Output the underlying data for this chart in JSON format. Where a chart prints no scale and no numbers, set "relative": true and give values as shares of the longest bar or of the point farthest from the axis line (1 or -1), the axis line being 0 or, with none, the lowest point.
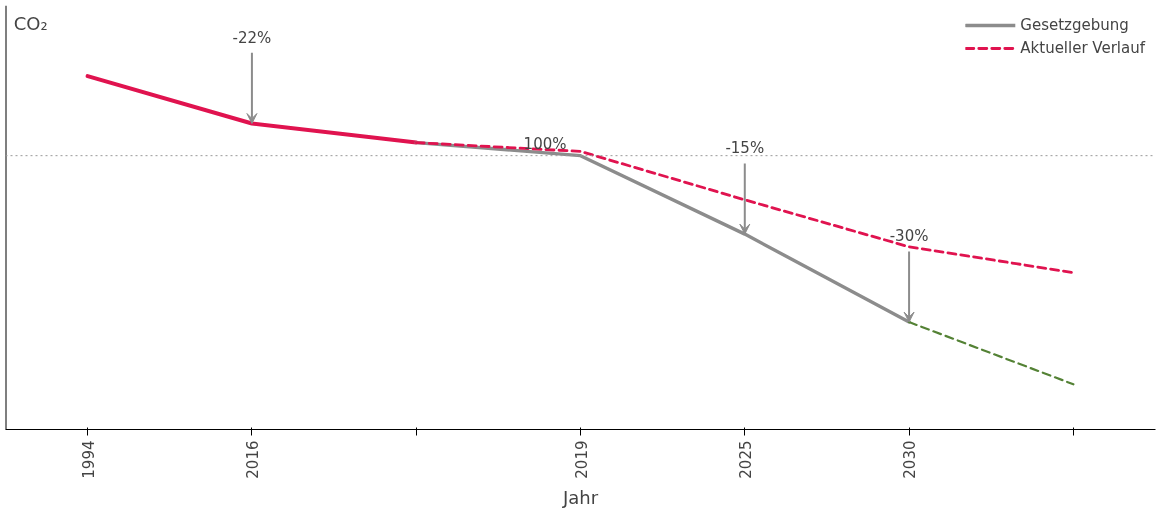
{
  "chart_data": {
    "type": "line",
    "relative": true,
    "xlabel": "Jahr",
    "ylabel": "CO₂",
    "categories": [
      "1994",
      "2016",
      null,
      "2019",
      "2025",
      "2030",
      null
    ],
    "series": [
      {
        "color": "#e0134f",
        "line_style": "solid",
        "values": [
          1.0,
          0.866,
          0.812,
          null,
          null,
          null,
          null
        ]
      },
      {
        "name": "Gesetzgebung",
        "color": "#8c8c8c",
        "line_style": "solid",
        "values": [
          null,
          null,
          0.812,
          0.775,
          0.553,
          0.304,
          null
        ]
      },
      {
        "name": "Aktueller Verlauf",
        "color": "#e0134f",
        "line_style": "dashed",
        "values": [
          null,
          null,
          0.812,
          0.787,
          0.65,
          0.517,
          0.444
        ]
      },
      {
        "color": "#548235",
        "line_style": "dashed",
        "values": [
          null,
          null,
          null,
          null,
          null,
          0.304,
          0.128
        ]
      }
    ],
    "annotations": [
      {
        "text": "-22%",
        "x": "2016",
        "y": 0.866
      },
      {
        "text": "-15%",
        "x": "2025",
        "y": 0.553
      },
      {
        "text": "-30%",
        "x": "2030",
        "y": 0.304
      },
      {
        "text": "100%",
        "x": "2019",
        "y": 0.775
      }
    ],
    "ref_lines": [
      {
        "axis": "y",
        "value": 0.775,
        "color": "#999999",
        "line_style": "dotted"
      }
    ],
    "legend": "top right",
    "marker": "none",
    "grid": false
  }
}
